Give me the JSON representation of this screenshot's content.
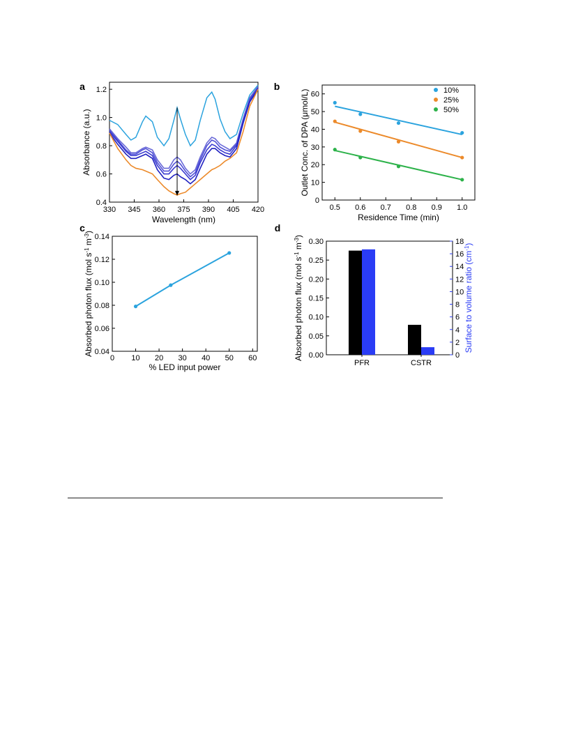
{
  "chart_data": [
    {
      "panel": "a",
      "type": "line",
      "xlabel": "Wavelength (nm)",
      "ylabel": "Absorbance (a.u.)",
      "xlim": [
        330,
        420
      ],
      "ylim": [
        0.4,
        1.25
      ],
      "xticks": [
        330,
        345,
        360,
        375,
        390,
        405,
        420
      ],
      "yticks": [
        0.4,
        0.6,
        0.8,
        1.0,
        1.2
      ],
      "x": [
        330,
        335,
        340,
        343,
        346,
        350,
        352,
        356,
        359,
        363,
        366,
        369,
        371,
        373,
        376,
        379,
        382,
        385,
        389,
        392,
        394,
        397,
        400,
        403,
        407,
        411,
        415,
        420
      ],
      "series": [
        {
          "color": "#2ba3de",
          "values": [
            0.98,
            0.95,
            0.88,
            0.84,
            0.86,
            0.97,
            1.01,
            0.97,
            0.86,
            0.8,
            0.85,
            0.98,
            1.07,
            0.99,
            0.88,
            0.8,
            0.84,
            0.98,
            1.14,
            1.18,
            1.13,
            0.99,
            0.9,
            0.85,
            0.88,
            1.03,
            1.16,
            1.23
          ]
        },
        {
          "color": "#6a6ad8",
          "values": [
            0.92,
            0.85,
            0.79,
            0.75,
            0.75,
            0.78,
            0.79,
            0.77,
            0.7,
            0.64,
            0.64,
            0.7,
            0.72,
            0.7,
            0.64,
            0.6,
            0.63,
            0.72,
            0.82,
            0.86,
            0.85,
            0.81,
            0.79,
            0.77,
            0.82,
            0.99,
            1.14,
            1.22
          ]
        },
        {
          "color": "#5050d6",
          "values": [
            0.91,
            0.84,
            0.77,
            0.74,
            0.74,
            0.77,
            0.78,
            0.75,
            0.68,
            0.62,
            0.62,
            0.67,
            0.69,
            0.67,
            0.62,
            0.58,
            0.61,
            0.7,
            0.8,
            0.84,
            0.83,
            0.79,
            0.77,
            0.76,
            0.81,
            0.98,
            1.13,
            1.21
          ]
        },
        {
          "color": "#3a3ad0",
          "values": [
            0.9,
            0.83,
            0.76,
            0.73,
            0.73,
            0.75,
            0.76,
            0.73,
            0.66,
            0.6,
            0.6,
            0.64,
            0.66,
            0.64,
            0.6,
            0.56,
            0.59,
            0.68,
            0.77,
            0.81,
            0.8,
            0.77,
            0.75,
            0.74,
            0.8,
            0.97,
            1.12,
            1.21
          ]
        },
        {
          "color": "#1f20c0",
          "values": [
            0.89,
            0.81,
            0.74,
            0.71,
            0.71,
            0.73,
            0.74,
            0.71,
            0.63,
            0.57,
            0.56,
            0.59,
            0.6,
            0.58,
            0.56,
            0.53,
            0.56,
            0.64,
            0.74,
            0.78,
            0.78,
            0.75,
            0.73,
            0.72,
            0.78,
            0.96,
            1.11,
            1.2
          ]
        },
        {
          "color": "#ec8a2a",
          "values": [
            0.89,
            0.78,
            0.7,
            0.66,
            0.64,
            0.63,
            0.62,
            0.6,
            0.56,
            0.51,
            0.48,
            0.46,
            0.45,
            0.46,
            0.47,
            0.5,
            0.53,
            0.56,
            0.6,
            0.63,
            0.64,
            0.66,
            0.69,
            0.71,
            0.75,
            0.9,
            1.08,
            1.2
          ]
        }
      ],
      "arrow": {
        "x": 371,
        "from": 1.07,
        "to": 0.45
      }
    },
    {
      "panel": "b",
      "type": "scatter",
      "xlabel": "Residence Time (min)",
      "ylabel": "Outlet Conc. of DPA (μmol/L)",
      "xlim": [
        0.45,
        1.05
      ],
      "ylim": [
        0,
        65
      ],
      "xticks": [
        0.5,
        0.6,
        0.7,
        0.8,
        0.9,
        1.0
      ],
      "yticks": [
        0,
        10,
        20,
        30,
        40,
        50,
        60
      ],
      "legend_position": "top-right",
      "series": [
        {
          "name": "10%",
          "color": "#2ba3de",
          "x": [
            0.5,
            0.6,
            0.75,
            1.0
          ],
          "values": [
            55,
            48.5,
            43.5,
            38
          ],
          "fit": [
            [
              0.5,
              53
            ],
            [
              1.0,
              37
            ]
          ]
        },
        {
          "name": "25%",
          "color": "#ec8a2a",
          "x": [
            0.5,
            0.6,
            0.75,
            1.0
          ],
          "values": [
            44.5,
            39,
            33,
            24
          ],
          "fit": [
            [
              0.5,
              44
            ],
            [
              1.0,
              24
            ]
          ]
        },
        {
          "name": "50%",
          "color": "#2db24a",
          "x": [
            0.5,
            0.6,
            0.75,
            1.0
          ],
          "values": [
            28.5,
            24,
            19,
            11.5
          ],
          "fit": [
            [
              0.5,
              28
            ],
            [
              1.0,
              11.5
            ]
          ]
        }
      ]
    },
    {
      "panel": "c",
      "type": "line",
      "xlabel": "% LED input power",
      "ylabel_main": "Absorbed photon flux (mol s",
      "ylabel_sup1": "-1",
      "ylabel_mid": " m",
      "ylabel_sup2": "-3",
      "ylabel_end": ")",
      "xlim": [
        0,
        62
      ],
      "ylim": [
        0.04,
        0.14
      ],
      "xticks": [
        0,
        10,
        20,
        30,
        40,
        50,
        60
      ],
      "yticks": [
        "0.04",
        "0.06",
        "0.08",
        "0.10",
        "0.12",
        "0.14"
      ],
      "series": [
        {
          "color": "#2ba3de",
          "x": [
            10,
            25,
            50
          ],
          "values": [
            0.079,
            0.0975,
            0.1255
          ]
        }
      ]
    },
    {
      "panel": "d",
      "type": "bar",
      "categories": [
        "PFR",
        "CSTR"
      ],
      "ylabel_main": "Absorbed photon flux (mol s",
      "ylabel_sup1": "-1",
      "ylabel_mid": " m",
      "ylabel_sup2": "-3",
      "ylabel_end": ")",
      "y2label_main": "Surface to volume ratio (cm",
      "y2label_sup": "-1",
      "y2label_end": ")",
      "ylim": [
        0,
        0.3
      ],
      "y2lim": [
        0,
        18
      ],
      "yticks": [
        "0.00",
        "0.05",
        "0.10",
        "0.15",
        "0.20",
        "0.25",
        "0.30"
      ],
      "y2ticks": [
        "0",
        "2",
        "4",
        "6",
        "8",
        "10",
        "12",
        "14",
        "16",
        "18"
      ],
      "series": [
        {
          "axis": "left",
          "color": "#000000",
          "values": [
            0.275,
            0.079
          ]
        },
        {
          "axis": "right",
          "color": "#2a3cf5",
          "values": [
            16.7,
            1.2
          ]
        }
      ],
      "y2_color": "#2a3cf5"
    }
  ],
  "panel_labels": {
    "a": "a",
    "b": "b",
    "c": "c",
    "d": "d"
  }
}
